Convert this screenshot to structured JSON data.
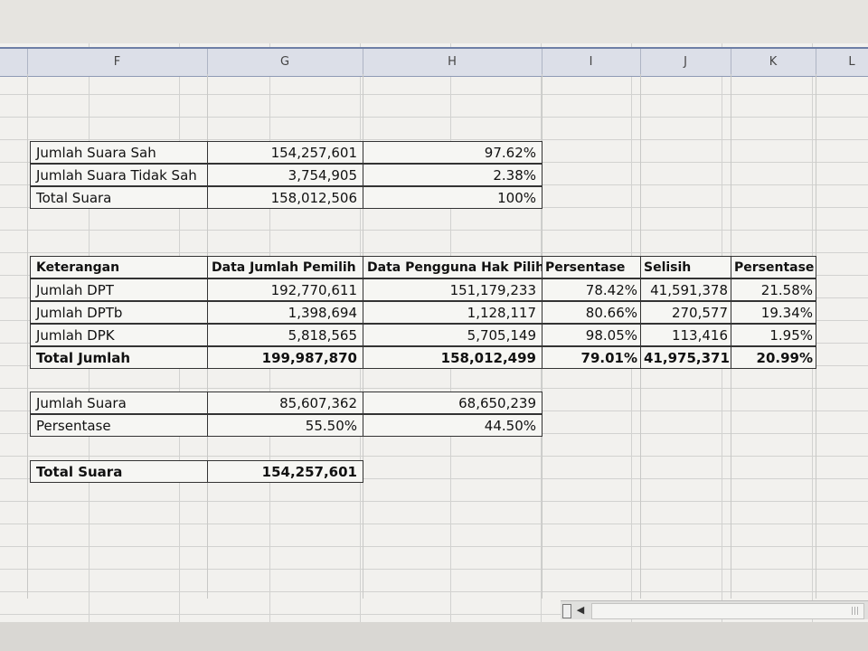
{
  "columns": [
    "F",
    "G",
    "H",
    "I",
    "J",
    "K",
    "L"
  ],
  "summary1": {
    "rows": [
      {
        "label": "Jumlah Suara Sah",
        "value": "154,257,601",
        "pct": "97.62%"
      },
      {
        "label": "Jumlah Suara Tidak Sah",
        "value": "3,754,905",
        "pct": "2.38%"
      },
      {
        "label": "Total Suara",
        "value": "158,012,506",
        "pct": "100%"
      }
    ]
  },
  "main_table": {
    "headers": [
      "Keterangan",
      "Data Jumlah Pemilih",
      "Data Pengguna Hak Pilih",
      "Persentase",
      "Selisih",
      "Persentase"
    ],
    "rows": [
      [
        "Jumlah DPT",
        "192,770,611",
        "151,179,233",
        "78.42%",
        "41,591,378",
        "21.58%"
      ],
      [
        "Jumlah DPTb",
        "1,398,694",
        "1,128,117",
        "80.66%",
        "270,577",
        "19.34%"
      ],
      [
        "Jumlah DPK",
        "5,818,565",
        "5,705,149",
        "98.05%",
        "113,416",
        "1.95%"
      ],
      [
        "Total Jumlah",
        "199,987,870",
        "158,012,499",
        "79.01%",
        "41,975,371",
        "20.99%"
      ]
    ]
  },
  "votes_table": {
    "rows": [
      [
        "Jumlah Suara",
        "85,607,362",
        "68,650,239"
      ],
      [
        "Persentase",
        "55.50%",
        "44.50%"
      ]
    ]
  },
  "total_table": {
    "label": "Total Suara",
    "value": "154,257,601"
  },
  "scrollbar": {
    "left_arrow": "◀",
    "grip": "|||"
  }
}
